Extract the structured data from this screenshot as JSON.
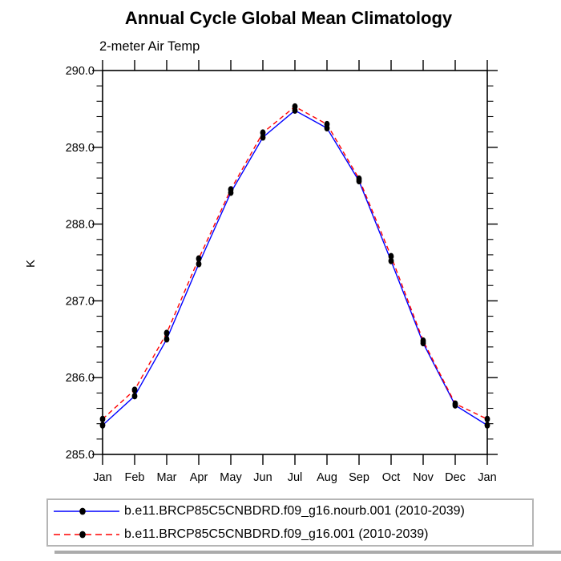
{
  "title": "Annual Cycle Global Mean Climatology",
  "subtitle": "2-meter Air Temp",
  "ylabel": "K",
  "chart_data": {
    "type": "line",
    "title": "Annual Cycle Global Mean Climatology",
    "subtitle": "2-meter Air Temp",
    "xlabel": "",
    "ylabel": "K",
    "categories": [
      "Jan",
      "Feb",
      "Mar",
      "Apr",
      "May",
      "Jun",
      "Jul",
      "Aug",
      "Sep",
      "Oct",
      "Nov",
      "Dec",
      "Jan"
    ],
    "ylim": [
      285.0,
      290.0
    ],
    "ytick_labels": [
      "285.0",
      "286.0",
      "287.0",
      "288.0",
      "289.0",
      "290.0"
    ],
    "ytick_values": [
      285.0,
      286.0,
      287.0,
      288.0,
      289.0,
      290.0
    ],
    "ytick_minor_interval": 0.2,
    "grid": false,
    "legend_position": "bottom",
    "frame_color": "#000000",
    "marker": "circle",
    "marker_color": "#000000",
    "series": [
      {
        "name": "b.e11.BRCP85C5CNBDRD.f09_g16.nourb.001 (2010-2039)",
        "color": "#0000ff",
        "line_style": "solid",
        "values": [
          285.38,
          285.76,
          286.5,
          287.48,
          288.41,
          289.13,
          289.48,
          289.25,
          288.56,
          287.52,
          286.45,
          285.64,
          285.38
        ]
      },
      {
        "name": "b.e11.BRCP85C5CNBDRD.f09_g16.001 (2010-2039)",
        "color": "#ff0000",
        "line_style": "dashed",
        "values": [
          285.46,
          285.84,
          286.58,
          287.55,
          288.45,
          289.19,
          289.53,
          289.3,
          288.59,
          287.58,
          286.48,
          285.66,
          285.46
        ]
      }
    ]
  }
}
